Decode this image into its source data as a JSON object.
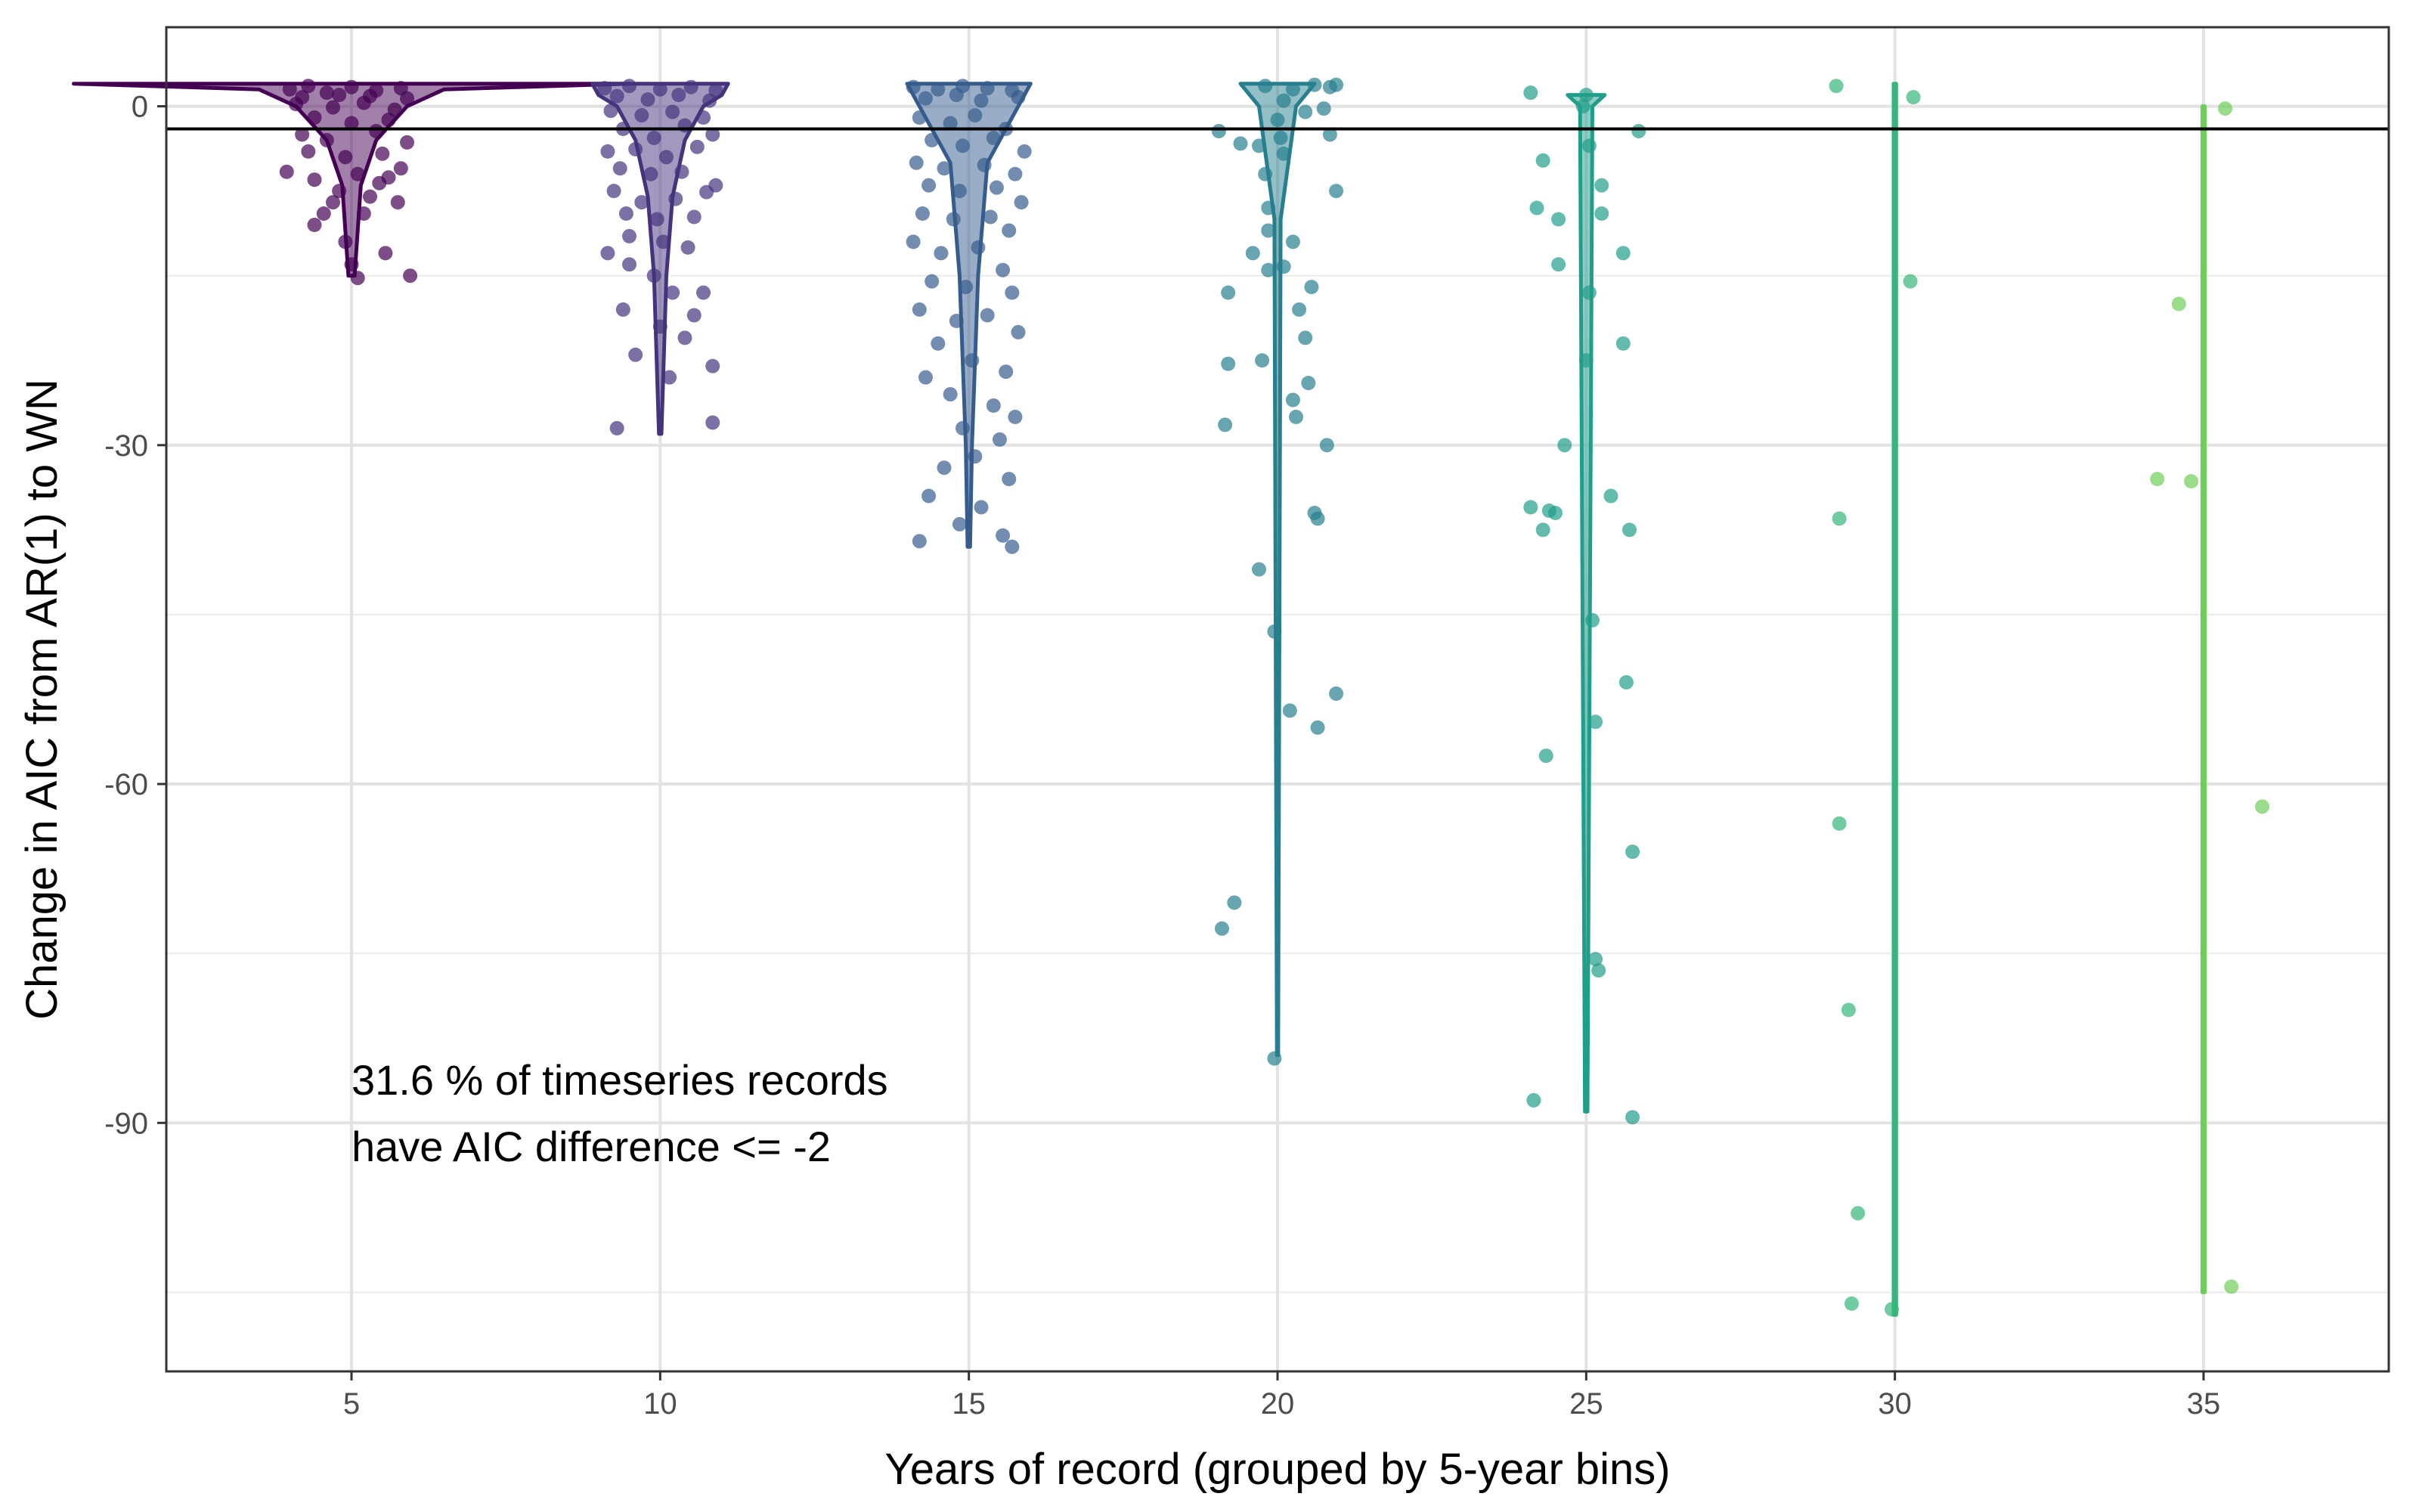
{
  "chart_data": {
    "type": "scatter",
    "subtype": "jittered violin + points",
    "xlabel": "Years of record (grouped by 5-year bins)",
    "ylabel": "Change in AIC from AR(1) to WN",
    "xlim": [
      2,
      38
    ],
    "ylim": [
      -112,
      7
    ],
    "x_ticks": [
      5,
      10,
      15,
      20,
      25,
      30,
      35
    ],
    "y_ticks": [
      0,
      -30,
      -60,
      -90
    ],
    "grid": true,
    "reference_line": -2,
    "annotation": [
      "31.6 % of timeseries records",
      "have AIC difference <= -2"
    ],
    "annotation_position": {
      "x": 5,
      "y": -87.5
    },
    "groups": [
      {
        "x": 5,
        "color": "#440154",
        "violin": [
          [
            2,
            4.5
          ],
          [
            1.5,
            1.5
          ],
          [
            0,
            0.9
          ],
          [
            -3,
            0.4
          ],
          [
            -7,
            0.15
          ],
          [
            -15,
            0.05
          ]
        ],
        "points": [
          [
            4.0,
            1.5
          ],
          [
            4.3,
            1.8
          ],
          [
            4.6,
            1.2
          ],
          [
            5.0,
            1.7
          ],
          [
            5.4,
            1.4
          ],
          [
            5.8,
            1.6
          ],
          [
            4.2,
            0.8
          ],
          [
            4.8,
            1.0
          ],
          [
            5.3,
            0.9
          ],
          [
            5.9,
            0.7
          ],
          [
            4.1,
            0.2
          ],
          [
            4.7,
            -0.1
          ],
          [
            5.2,
            0.3
          ],
          [
            5.7,
            -0.3
          ],
          [
            4.4,
            -1.0
          ],
          [
            5.0,
            -1.5
          ],
          [
            5.6,
            -1.2
          ],
          [
            4.2,
            -2.5
          ],
          [
            4.6,
            -3.0
          ],
          [
            5.4,
            -2.2
          ],
          [
            5.9,
            -3.2
          ],
          [
            4.3,
            -4.0
          ],
          [
            4.9,
            -4.5
          ],
          [
            5.5,
            -4.2
          ],
          [
            5.8,
            -5.5
          ],
          [
            3.95,
            -5.8
          ],
          [
            4.4,
            -6.5
          ],
          [
            5.1,
            -6.0
          ],
          [
            5.6,
            -6.3
          ],
          [
            4.7,
            -8.5
          ],
          [
            4.8,
            -7.5
          ],
          [
            5.3,
            -8.0
          ],
          [
            5.45,
            -6.8
          ],
          [
            5.75,
            -8.5
          ],
          [
            4.55,
            -9.5
          ],
          [
            4.4,
            -10.5
          ],
          [
            5.2,
            -9.5
          ],
          [
            4.9,
            -12.0
          ],
          [
            5.0,
            -14.0
          ],
          [
            5.55,
            -13.0
          ],
          [
            5.1,
            -15.2
          ],
          [
            5.95,
            -15.0
          ]
        ]
      },
      {
        "x": 10,
        "color": "#46337e",
        "violin": [
          [
            2,
            1.1
          ],
          [
            1,
            1.0
          ],
          [
            0,
            0.7
          ],
          [
            -3,
            0.4
          ],
          [
            -8,
            0.2
          ],
          [
            -15,
            0.1
          ],
          [
            -29,
            0.02
          ]
        ],
        "points": [
          [
            9.1,
            1.6
          ],
          [
            9.5,
            1.8
          ],
          [
            10.0,
            1.5
          ],
          [
            10.5,
            1.7
          ],
          [
            10.9,
            1.4
          ],
          [
            9.3,
            0.9
          ],
          [
            9.8,
            0.6
          ],
          [
            10.3,
            1.0
          ],
          [
            10.8,
            0.5
          ],
          [
            9.2,
            -0.4
          ],
          [
            9.7,
            -0.8
          ],
          [
            10.2,
            -0.5
          ],
          [
            10.7,
            -1.0
          ],
          [
            9.4,
            -2.0
          ],
          [
            9.9,
            -2.8
          ],
          [
            10.4,
            -1.7
          ],
          [
            10.85,
            -2.5
          ],
          [
            9.15,
            -4.0
          ],
          [
            9.6,
            -3.8
          ],
          [
            10.1,
            -4.5
          ],
          [
            10.6,
            -3.6
          ],
          [
            9.35,
            -5.5
          ],
          [
            9.85,
            -6.0
          ],
          [
            10.35,
            -5.8
          ],
          [
            10.9,
            -7.0
          ],
          [
            9.25,
            -7.5
          ],
          [
            9.7,
            -8.5
          ],
          [
            10.25,
            -8.2
          ],
          [
            10.75,
            -7.6
          ],
          [
            9.45,
            -9.5
          ],
          [
            9.95,
            -10.0
          ],
          [
            10.55,
            -9.8
          ],
          [
            9.5,
            -11.5
          ],
          [
            10.05,
            -12.0
          ],
          [
            10.45,
            -12.5
          ],
          [
            9.15,
            -13.0
          ],
          [
            9.5,
            -14.0
          ],
          [
            9.9,
            -15.0
          ],
          [
            10.2,
            -16.5
          ],
          [
            10.7,
            -16.5
          ],
          [
            9.4,
            -18.0
          ],
          [
            10.55,
            -18.5
          ],
          [
            10.0,
            -19.5
          ],
          [
            10.4,
            -20.5
          ],
          [
            9.6,
            -22.0
          ],
          [
            10.15,
            -24.0
          ],
          [
            10.85,
            -23.0
          ],
          [
            9.3,
            -28.5
          ],
          [
            10.85,
            -28.0
          ]
        ]
      },
      {
        "x": 15,
        "color": "#365c8d",
        "violin": [
          [
            2,
            1.0
          ],
          [
            0,
            0.8
          ],
          [
            -5,
            0.3
          ],
          [
            -15,
            0.15
          ],
          [
            -30,
            0.05
          ],
          [
            -39,
            0.02
          ]
        ],
        "points": [
          [
            14.1,
            1.7
          ],
          [
            14.5,
            1.5
          ],
          [
            14.9,
            1.8
          ],
          [
            15.3,
            1.6
          ],
          [
            15.7,
            1.4
          ],
          [
            14.3,
            0.7
          ],
          [
            14.8,
            1.0
          ],
          [
            15.2,
            0.5
          ],
          [
            15.8,
            0.8
          ],
          [
            14.2,
            -1.0
          ],
          [
            14.7,
            -1.5
          ],
          [
            15.1,
            -0.8
          ],
          [
            15.6,
            -2.0
          ],
          [
            14.4,
            -3.0
          ],
          [
            14.9,
            -3.5
          ],
          [
            15.4,
            -2.8
          ],
          [
            15.9,
            -4.0
          ],
          [
            14.15,
            -5.0
          ],
          [
            14.6,
            -5.5
          ],
          [
            15.25,
            -5.2
          ],
          [
            15.75,
            -6.0
          ],
          [
            14.35,
            -7.0
          ],
          [
            14.85,
            -7.5
          ],
          [
            15.45,
            -7.2
          ],
          [
            15.85,
            -8.5
          ],
          [
            14.25,
            -9.5
          ],
          [
            14.75,
            -10.0
          ],
          [
            15.35,
            -9.8
          ],
          [
            15.65,
            -11.0
          ],
          [
            14.1,
            -12.0
          ],
          [
            14.55,
            -13.0
          ],
          [
            15.15,
            -12.5
          ],
          [
            15.55,
            -14.5
          ],
          [
            14.4,
            -15.5
          ],
          [
            14.95,
            -16.0
          ],
          [
            15.7,
            -16.5
          ],
          [
            14.2,
            -18.0
          ],
          [
            14.8,
            -19.0
          ],
          [
            15.3,
            -18.5
          ],
          [
            15.8,
            -20.0
          ],
          [
            14.5,
            -21.0
          ],
          [
            15.05,
            -22.5
          ],
          [
            15.6,
            -23.5
          ],
          [
            14.3,
            -24.0
          ],
          [
            14.7,
            -25.5
          ],
          [
            15.4,
            -26.5
          ],
          [
            15.75,
            -27.5
          ],
          [
            14.9,
            -28.5
          ],
          [
            15.5,
            -29.5
          ],
          [
            15.1,
            -31.0
          ],
          [
            14.6,
            -32.0
          ],
          [
            15.65,
            -33.0
          ],
          [
            14.35,
            -34.5
          ],
          [
            15.2,
            -35.5
          ],
          [
            14.85,
            -37.0
          ],
          [
            14.2,
            -38.5
          ],
          [
            15.55,
            -38.0
          ],
          [
            15.7,
            -39.0
          ]
        ]
      },
      {
        "x": 20,
        "color": "#277f8e",
        "violin": [
          [
            2,
            0.6
          ],
          [
            0,
            0.3
          ],
          [
            -10,
            0.05
          ],
          [
            -84,
            0.01
          ]
        ],
        "points": [
          [
            19.8,
            1.8
          ],
          [
            20.25,
            1.5
          ],
          [
            20.6,
            1.9
          ],
          [
            20.85,
            1.7
          ],
          [
            20.95,
            1.9
          ],
          [
            20.1,
            0.5
          ],
          [
            20.45,
            -0.5
          ],
          [
            20.75,
            -0.2
          ],
          [
            20.0,
            -1.2
          ],
          [
            19.05,
            -2.2
          ],
          [
            20.05,
            -2.8
          ],
          [
            19.4,
            -3.3
          ],
          [
            19.7,
            -3.5
          ],
          [
            20.85,
            -2.5
          ],
          [
            20.1,
            -4.2
          ],
          [
            19.8,
            -6.0
          ],
          [
            20.95,
            -7.5
          ],
          [
            19.85,
            -9.0
          ],
          [
            19.85,
            -11.0
          ],
          [
            20.25,
            -12.0
          ],
          [
            19.6,
            -13.0
          ],
          [
            19.85,
            -14.5
          ],
          [
            20.1,
            -14.2
          ],
          [
            19.2,
            -16.5
          ],
          [
            20.55,
            -16.0
          ],
          [
            20.35,
            -18.0
          ],
          [
            20.45,
            -20.5
          ],
          [
            19.75,
            -22.5
          ],
          [
            19.2,
            -22.8
          ],
          [
            20.5,
            -24.5
          ],
          [
            20.25,
            -26.0
          ],
          [
            20.3,
            -27.5
          ],
          [
            19.15,
            -28.2
          ],
          [
            20.8,
            -30.0
          ],
          [
            20.6,
            -36.0
          ],
          [
            20.65,
            -36.5
          ],
          [
            19.7,
            -41.0
          ],
          [
            19.95,
            -46.5
          ],
          [
            20.95,
            -52.0
          ],
          [
            20.2,
            -53.5
          ],
          [
            20.65,
            -55.0
          ],
          [
            19.3,
            -70.5
          ],
          [
            19.1,
            -72.8
          ],
          [
            19.95,
            -84.3
          ]
        ]
      },
      {
        "x": 25,
        "color": "#1f9e89",
        "violin": [
          [
            1,
            0.3
          ],
          [
            0,
            0.1
          ],
          [
            -89,
            0.02
          ]
        ],
        "points": [
          [
            24.1,
            1.2
          ],
          [
            25.0,
            1.0
          ],
          [
            24.95,
            0.0
          ],
          [
            25.85,
            -2.2
          ],
          [
            25.05,
            -3.5
          ],
          [
            24.3,
            -4.8
          ],
          [
            25.25,
            -7.0
          ],
          [
            24.2,
            -9.0
          ],
          [
            24.55,
            -10.0
          ],
          [
            25.25,
            -9.5
          ],
          [
            25.6,
            -13.0
          ],
          [
            24.55,
            -14.0
          ],
          [
            25.05,
            -16.5
          ],
          [
            25.6,
            -21.0
          ],
          [
            25.0,
            -22.5
          ],
          [
            24.65,
            -30.0
          ],
          [
            25.4,
            -34.5
          ],
          [
            24.1,
            -35.5
          ],
          [
            24.5,
            -36.0
          ],
          [
            24.4,
            -35.8
          ],
          [
            24.3,
            -37.5
          ],
          [
            25.7,
            -37.5
          ],
          [
            25.1,
            -45.5
          ],
          [
            25.65,
            -51.0
          ],
          [
            25.15,
            -54.5
          ],
          [
            24.35,
            -57.5
          ],
          [
            25.75,
            -66.0
          ],
          [
            25.15,
            -75.5
          ],
          [
            25.2,
            -76.5
          ],
          [
            24.15,
            -88.0
          ],
          [
            25.75,
            -89.5
          ]
        ]
      },
      {
        "x": 30,
        "color": "#35b779",
        "violin": [
          [
            2,
            0.02
          ],
          [
            -107,
            0.02
          ]
        ],
        "points": [
          [
            29.05,
            1.8
          ],
          [
            30.3,
            0.8
          ],
          [
            30.25,
            -15.5
          ],
          [
            29.1,
            -36.5
          ],
          [
            29.1,
            -63.5
          ],
          [
            29.25,
            -80.0
          ],
          [
            29.4,
            -98.0
          ],
          [
            29.3,
            -106.0
          ],
          [
            29.95,
            -106.5
          ]
        ]
      },
      {
        "x": 35,
        "color": "#6ece58",
        "violin": [
          [
            0,
            0.02
          ],
          [
            -105,
            0.02
          ]
        ],
        "points": [
          [
            35.35,
            -0.2
          ],
          [
            34.6,
            -17.5
          ],
          [
            34.25,
            -33.0
          ],
          [
            34.8,
            -33.2
          ],
          [
            35.95,
            -62.0
          ],
          [
            35.45,
            -104.5
          ]
        ]
      }
    ]
  }
}
